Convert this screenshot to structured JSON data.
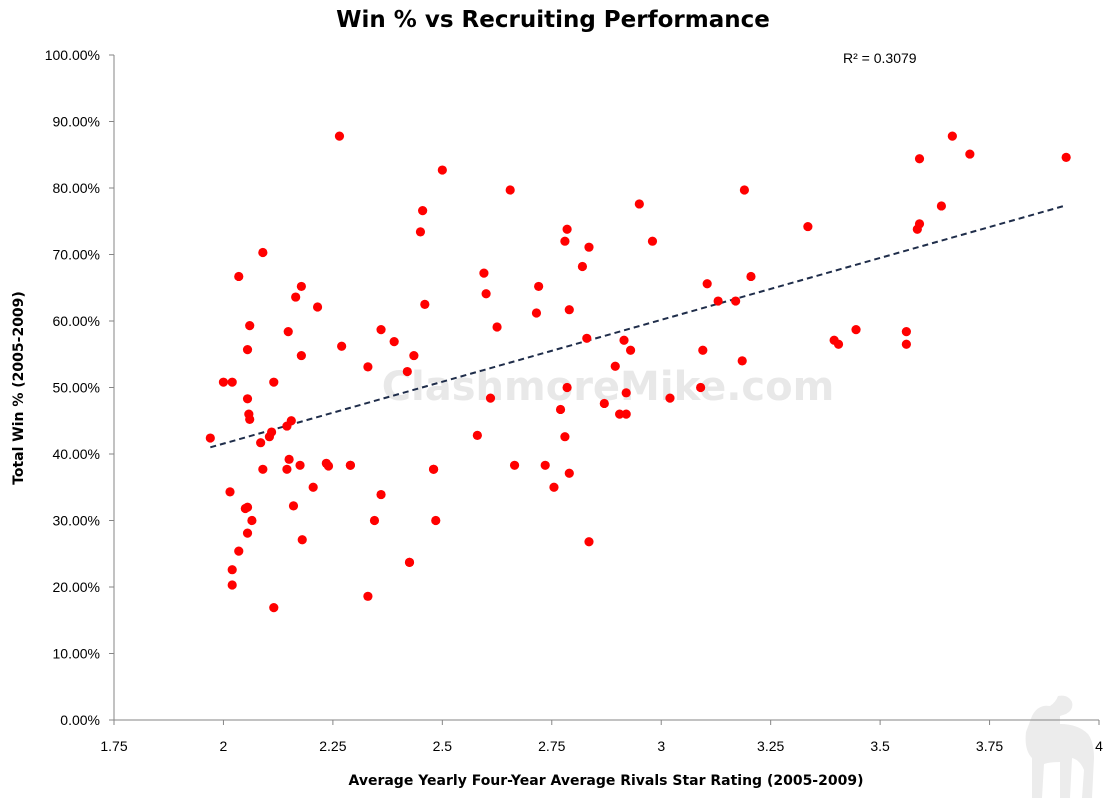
{
  "chart_data": {
    "type": "scatter",
    "title": "Win % vs Recruiting Performance",
    "xlabel": "Average Yearly Four-Year Average Rivals Star Rating (2005-2009)",
    "ylabel": "Total Win % (2005-2009)",
    "xlim": [
      1.75,
      4
    ],
    "ylim": [
      0,
      1
    ],
    "x_ticks": [
      "1.75",
      "2",
      "2.25",
      "2.5",
      "2.75",
      "3",
      "3.25",
      "3.5",
      "3.75",
      "4"
    ],
    "y_ticks": [
      "0.00%",
      "10.00%",
      "20.00%",
      "30.00%",
      "40.00%",
      "50.00%",
      "60.00%",
      "70.00%",
      "80.00%",
      "90.00%",
      "100.00%"
    ],
    "annotation": "R² = 0.3079",
    "watermark": "ClashmoreMike.com",
    "grid": false,
    "marker_color": "#ff0000",
    "trendline": {
      "style": "dashed",
      "color": "#1f2d4a",
      "x": [
        1.97,
        3.92
      ],
      "y": [
        0.41,
        0.773
      ]
    },
    "points": [
      [
        1.97,
        0.424
      ],
      [
        2.0,
        0.508
      ],
      [
        2.02,
        0.508
      ],
      [
        2.015,
        0.343
      ],
      [
        2.02,
        0.226
      ],
      [
        2.02,
        0.203
      ],
      [
        2.035,
        0.254
      ],
      [
        2.035,
        0.667
      ],
      [
        2.05,
        0.318
      ],
      [
        2.055,
        0.32
      ],
      [
        2.055,
        0.557
      ],
      [
        2.055,
        0.483
      ],
      [
        2.058,
        0.46
      ],
      [
        2.06,
        0.452
      ],
      [
        2.06,
        0.593
      ],
      [
        2.055,
        0.281
      ],
      [
        2.065,
        0.3
      ],
      [
        2.085,
        0.417
      ],
      [
        2.09,
        0.377
      ],
      [
        2.09,
        0.703
      ],
      [
        2.105,
        0.426
      ],
      [
        2.11,
        0.433
      ],
      [
        2.115,
        0.508
      ],
      [
        2.115,
        0.169
      ],
      [
        2.145,
        0.442
      ],
      [
        2.145,
        0.377
      ],
      [
        2.148,
        0.584
      ],
      [
        2.15,
        0.392
      ],
      [
        2.155,
        0.45
      ],
      [
        2.16,
        0.322
      ],
      [
        2.165,
        0.636
      ],
      [
        2.175,
        0.383
      ],
      [
        2.178,
        0.548
      ],
      [
        2.178,
        0.652
      ],
      [
        2.18,
        0.271
      ],
      [
        2.205,
        0.35
      ],
      [
        2.215,
        0.621
      ],
      [
        2.235,
        0.386
      ],
      [
        2.24,
        0.382
      ],
      [
        2.265,
        0.878
      ],
      [
        2.27,
        0.562
      ],
      [
        2.29,
        0.383
      ],
      [
        2.29,
        0.383
      ],
      [
        2.33,
        0.531
      ],
      [
        2.33,
        0.186
      ],
      [
        2.345,
        0.3
      ],
      [
        2.36,
        0.339
      ],
      [
        2.36,
        0.587
      ],
      [
        2.39,
        0.569
      ],
      [
        2.42,
        0.524
      ],
      [
        2.425,
        0.237
      ],
      [
        2.425,
        0.237
      ],
      [
        2.435,
        0.548
      ],
      [
        2.45,
        0.734
      ],
      [
        2.455,
        0.766
      ],
      [
        2.46,
        0.625
      ],
      [
        2.48,
        0.377
      ],
      [
        2.48,
        0.377
      ],
      [
        2.485,
        0.3
      ],
      [
        2.5,
        0.827
      ],
      [
        2.58,
        0.428
      ],
      [
        2.595,
        0.672
      ],
      [
        2.6,
        0.641
      ],
      [
        2.61,
        0.484
      ],
      [
        2.625,
        0.591
      ],
      [
        2.655,
        0.797
      ],
      [
        2.665,
        0.383
      ],
      [
        2.715,
        0.612
      ],
      [
        2.72,
        0.652
      ],
      [
        2.735,
        0.383
      ],
      [
        2.755,
        0.35
      ],
      [
        2.77,
        0.467
      ],
      [
        2.78,
        0.72
      ],
      [
        2.78,
        0.426
      ],
      [
        2.785,
        0.5
      ],
      [
        2.785,
        0.738
      ],
      [
        2.79,
        0.617
      ],
      [
        2.79,
        0.371
      ],
      [
        2.82,
        0.682
      ],
      [
        2.83,
        0.574
      ],
      [
        2.835,
        0.711
      ],
      [
        2.835,
        0.268
      ],
      [
        2.87,
        0.476
      ],
      [
        2.895,
        0.532
      ],
      [
        2.905,
        0.46
      ],
      [
        2.915,
        0.571
      ],
      [
        2.92,
        0.46
      ],
      [
        2.92,
        0.492
      ],
      [
        2.93,
        0.556
      ],
      [
        2.95,
        0.776
      ],
      [
        2.98,
        0.72
      ],
      [
        3.02,
        0.484
      ],
      [
        3.09,
        0.5
      ],
      [
        3.095,
        0.556
      ],
      [
        3.105,
        0.656
      ],
      [
        3.13,
        0.63
      ],
      [
        3.17,
        0.63
      ],
      [
        3.185,
        0.54
      ],
      [
        3.19,
        0.797
      ],
      [
        3.205,
        0.667
      ],
      [
        3.335,
        0.742
      ],
      [
        3.395,
        0.571
      ],
      [
        3.405,
        0.565
      ],
      [
        3.445,
        0.587
      ],
      [
        3.56,
        0.565
      ],
      [
        3.56,
        0.584
      ],
      [
        3.585,
        0.738
      ],
      [
        3.59,
        0.844
      ],
      [
        3.59,
        0.746
      ],
      [
        3.64,
        0.773
      ],
      [
        3.665,
        0.878
      ],
      [
        3.705,
        0.851
      ],
      [
        3.925,
        0.846
      ]
    ]
  }
}
